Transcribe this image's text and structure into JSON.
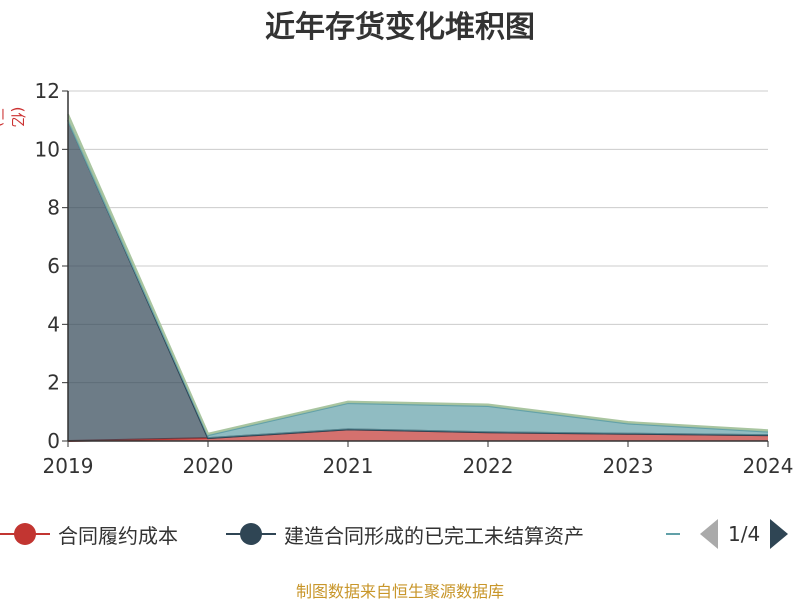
{
  "title": "近年存货变化堆积图",
  "unit": "(亿元)",
  "source": "制图数据来自恒生聚源数据库",
  "pager": {
    "text": "1/4"
  },
  "legend": [
    {
      "label": "合同履约成本",
      "color": "#c23531"
    },
    {
      "label": "建造合同形成的已完工未结算资产",
      "color": "#2f4554"
    }
  ],
  "chart_data": {
    "type": "area",
    "stacked": true,
    "title": "近年存货变化堆积图",
    "ylabel": "(亿元)",
    "x": [
      "2019",
      "2020",
      "2021",
      "2022",
      "2023",
      "2024"
    ],
    "ylim": [
      0,
      12
    ],
    "yticks": [
      0,
      2,
      4,
      6,
      8,
      10,
      12
    ],
    "grid": true,
    "legend_position": "bottom",
    "series": [
      {
        "name": "合同履约成本",
        "color": "#c23531",
        "values": [
          0.0,
          0.1,
          0.4,
          0.3,
          0.25,
          0.2
        ]
      },
      {
        "name": "建造合同形成的已完工未结算资产",
        "color": "#2f4554",
        "values": [
          11.0,
          0.0,
          0.0,
          0.0,
          0.0,
          0.0
        ]
      },
      {
        "name": "",
        "color": "#61a0a8",
        "values": [
          0.0,
          0.1,
          0.9,
          0.9,
          0.35,
          0.12
        ]
      },
      {
        "name": "",
        "color": "#a9c5a0",
        "values": [
          0.2,
          0.05,
          0.05,
          0.05,
          0.05,
          0.05
        ]
      }
    ]
  }
}
